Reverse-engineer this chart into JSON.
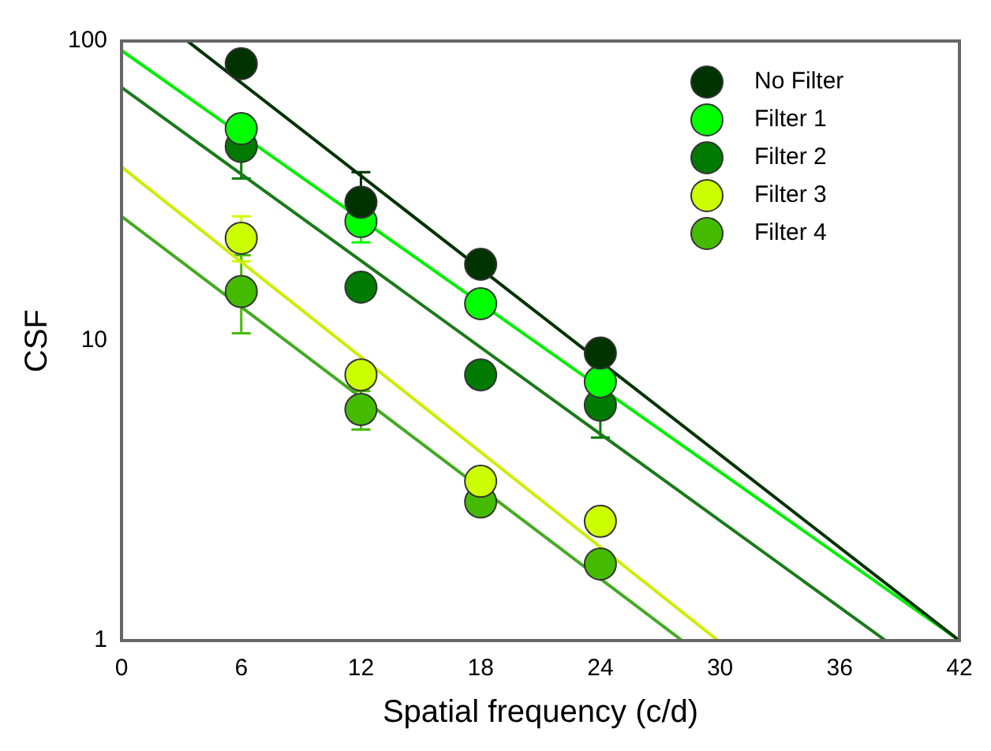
{
  "chart_data": {
    "type": "scatter",
    "xlabel": "Spatial frequency (c/d)",
    "ylabel": "CSF",
    "log": "y",
    "grid": false,
    "legend": "top right",
    "marker": "circle",
    "xlim": [
      0,
      42
    ],
    "xticks": [
      0,
      6,
      12,
      18,
      24,
      30,
      36,
      42
    ],
    "ylim": [
      1,
      100
    ],
    "yticks": [
      1,
      10,
      100
    ],
    "series": [
      {
        "name": "No Filter",
        "color": "#003300",
        "x": [
          6,
          12,
          18,
          24
        ],
        "values": [
          84,
          29,
          18,
          9.1
        ],
        "errors": [
          null,
          [
            23,
            36.5
          ],
          null,
          null
        ]
      },
      {
        "name": "Filter 1",
        "color": "#00ff00",
        "x": [
          6,
          12,
          18,
          24
        ],
        "values": [
          51,
          25,
          13.3,
          7.3
        ],
        "errors": [
          null,
          [
            21.3,
            25
          ],
          null,
          [
            6.6,
            8.2
          ]
        ]
      },
      {
        "name": "Filter 2",
        "color": "#007a00",
        "x": [
          6,
          12,
          18,
          24
        ],
        "values": [
          44.5,
          15.1,
          7.7,
          6.1
        ],
        "errors": [
          [
            34.8,
            55
          ],
          null,
          null,
          [
            4.75,
            6.1
          ]
        ]
      },
      {
        "name": "Filter 3",
        "color": "#ccff00",
        "x": [
          6,
          12,
          18,
          24
        ],
        "values": [
          22,
          7.7,
          3.4,
          2.5
        ],
        "errors": [
          [
            18.4,
            26
          ],
          null,
          null,
          null
        ]
      },
      {
        "name": "Filter 4",
        "color": "#44bb00",
        "x": [
          6,
          12,
          18,
          24
        ],
        "values": [
          14.6,
          5.9,
          2.9,
          1.8
        ],
        "errors": [
          [
            10.6,
            19.3
          ],
          [
            5.06,
            6.8
          ],
          null,
          null
        ]
      },
      {
        "type": "line",
        "color": "#003300",
        "x": [
          3.3,
          42
        ],
        "values": [
          100,
          1
        ],
        "marker": "none"
      },
      {
        "type": "line",
        "color": "#00ee00",
        "x": [
          0,
          42
        ],
        "values": [
          93,
          1
        ],
        "marker": "none"
      },
      {
        "type": "line",
        "color": "#1a7a1a",
        "x": [
          0,
          38.3
        ],
        "values": [
          70,
          1
        ],
        "marker": "none"
      },
      {
        "type": "line",
        "color": "#ccee00",
        "x": [
          0,
          29.9
        ],
        "values": [
          38,
          1
        ],
        "marker": "none"
      },
      {
        "type": "line",
        "color": "#44aa22",
        "x": [
          0,
          28.1
        ],
        "values": [
          26,
          1
        ],
        "marker": "none"
      }
    ]
  }
}
